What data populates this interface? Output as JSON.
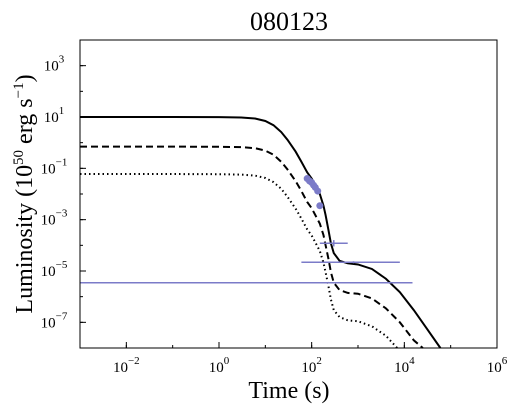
{
  "chart_data": {
    "type": "line",
    "title": "080123",
    "xlabel": "Time (s)",
    "ylabel": "Luminosity (10^50 erg s^-1)",
    "ylabel_parts": {
      "prefix": "Luminosity (10",
      "sup1": "50",
      "mid": " erg s",
      "sup2": "−1",
      "suffix": ")"
    },
    "xscale": "log",
    "yscale": "log",
    "xlim": [
      0.001,
      1000000
    ],
    "ylim": [
      1e-08,
      10000
    ],
    "xticks": [
      {
        "value": 0.01,
        "base": "10",
        "exp": "−2"
      },
      {
        "value": 1,
        "base": "10",
        "exp": "0"
      },
      {
        "value": 100,
        "base": "10",
        "exp": "2"
      },
      {
        "value": 10000,
        "base": "10",
        "exp": "4"
      },
      {
        "value": 1000000,
        "base": "10",
        "exp": "6"
      }
    ],
    "yticks": [
      {
        "value": 1e-07,
        "base": "10",
        "exp": "−7"
      },
      {
        "value": 1e-05,
        "base": "10",
        "exp": "−5"
      },
      {
        "value": 0.001,
        "base": "10",
        "exp": "−3"
      },
      {
        "value": 0.1,
        "base": "10",
        "exp": "−1"
      },
      {
        "value": 10,
        "base": "10",
        "exp": "1"
      },
      {
        "value": 1000,
        "base": "10",
        "exp": "3"
      }
    ],
    "grid": false,
    "series": [
      {
        "style": "solid",
        "color": "#000000",
        "x": [
          0.001,
          0.1,
          1,
          3,
          6,
          10,
          15,
          22,
          30,
          45,
          60,
          80,
          100,
          120,
          150,
          180,
          200,
          230,
          260,
          300,
          400,
          600,
          1000,
          2000,
          4000,
          8000,
          16000,
          30000,
          60000
        ],
        "y": [
          10,
          10,
          9.9,
          9.6,
          8.7,
          7,
          4.8,
          2.6,
          1.3,
          0.45,
          0.18,
          0.07,
          0.04,
          0.022,
          0.01,
          0.0035,
          0.0015,
          0.0004,
          0.00012,
          5e-05,
          2.5e-05,
          2e-05,
          1.8e-05,
          1.2e-05,
          5e-06,
          1.5e-06,
          3e-07,
          6e-08,
          8e-09
        ]
      },
      {
        "style": "dashed",
        "color": "#000000",
        "x": [
          0.001,
          0.1,
          1,
          3,
          6,
          10,
          15,
          22,
          30,
          45,
          60,
          80,
          100,
          120,
          150,
          180,
          200,
          230,
          260,
          300,
          400,
          600,
          1000,
          2000,
          4000,
          8000,
          16000,
          25000
        ],
        "y": [
          0.7,
          0.7,
          0.69,
          0.67,
          0.61,
          0.49,
          0.34,
          0.18,
          0.091,
          0.032,
          0.013,
          0.0049,
          0.0028,
          0.0015,
          0.0007,
          0.00025,
          0.0001,
          3e-05,
          9e-06,
          3.5e-06,
          1.8e-06,
          1.4e-06,
          1.3e-06,
          8.5e-07,
          3.5e-07,
          1e-07,
          2e-08,
          8e-09
        ]
      },
      {
        "style": "dotted",
        "color": "#000000",
        "x": [
          0.001,
          0.1,
          1,
          3,
          6,
          10,
          15,
          22,
          30,
          45,
          60,
          80,
          100,
          120,
          150,
          180,
          200,
          230,
          260,
          300,
          400,
          600,
          1000,
          2000,
          4000,
          7000
        ],
        "y": [
          0.06,
          0.06,
          0.059,
          0.057,
          0.052,
          0.042,
          0.029,
          0.016,
          0.0078,
          0.0027,
          0.0011,
          0.00042,
          0.00024,
          0.00013,
          6e-05,
          2.1e-05,
          8.8e-06,
          2.6e-06,
          7.8e-07,
          3e-07,
          1.6e-07,
          1.2e-07,
          1.1e-07,
          7e-08,
          3e-08,
          8e-09
        ]
      }
    ],
    "data_points": {
      "color": "#7b7bc8",
      "points": [
        {
          "x": 80,
          "y": 0.04
        },
        {
          "x": 90,
          "y": 0.032
        },
        {
          "x": 100,
          "y": 0.028
        },
        {
          "x": 110,
          "y": 0.022
        },
        {
          "x": 120,
          "y": 0.018
        },
        {
          "x": 135,
          "y": 0.013
        },
        {
          "x": 150,
          "y": 0.0035
        }
      ]
    },
    "error_bars": [
      {
        "x": 300,
        "y": 0.00012,
        "xmin": 150,
        "xmax": 600,
        "ymin": 9e-05,
        "ymax": 0.00016
      },
      {
        "x": 800,
        "y": 2.2e-05,
        "xmin": 60,
        "xmax": 8000,
        "ymin": 2e-05,
        "ymax": 2.4e-05
      },
      {
        "x": 8000,
        "y": 3.5e-06,
        "xmin": 0.001,
        "xmax": 15000,
        "ymin": 3.5e-06,
        "ymax": 3.5e-06
      }
    ]
  }
}
